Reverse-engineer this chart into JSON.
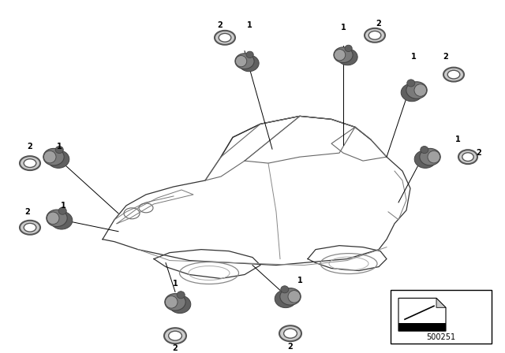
{
  "bg_color": "#ffffff",
  "part_number": "500251",
  "fig_width": 6.4,
  "fig_height": 4.48,
  "car_color": "#333333",
  "car_lw": 0.9,
  "sensor_body_color": "#7a7a7a",
  "sensor_edge_color": "#444444",
  "ring_face_color": "#aaaaaa",
  "ring_edge_color": "#555555",
  "label_color": "#000000",
  "label_fontsize": 7,
  "line_color": "#000000",
  "line_lw": 0.7
}
